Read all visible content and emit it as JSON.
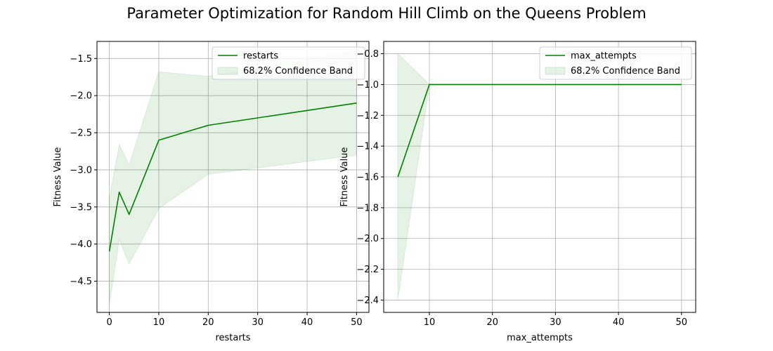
{
  "figure": {
    "title": "Parameter Optimization for Random Hill Climb on the Queens Problem"
  },
  "colors": {
    "line": "#008000",
    "band_fill": "#008000",
    "grid": "#b0b0b0",
    "axes": "#000000"
  },
  "chart_data": [
    {
      "type": "line",
      "xlabel": "restarts",
      "ylabel": "Fitness Value",
      "xlim": [
        -2.5,
        52.5
      ],
      "ylim": [
        -4.92,
        -1.27
      ],
      "xticks": [
        0,
        10,
        20,
        30,
        40,
        50
      ],
      "xtick_labels": [
        "0",
        "10",
        "20",
        "30",
        "40",
        "50"
      ],
      "yticks": [
        -4.5,
        -4.0,
        -3.5,
        -3.0,
        -2.5,
        -2.0,
        -1.5
      ],
      "ytick_labels": [
        "−4.5",
        "−4.0",
        "−3.5",
        "−3.0",
        "−2.5",
        "−2.0",
        "−1.5"
      ],
      "grid": true,
      "legend_position": "top-right",
      "series": [
        {
          "name": "restarts",
          "x": [
            0,
            2,
            4,
            10,
            20,
            50
          ],
          "y": [
            -4.1,
            -3.3,
            -3.6,
            -2.6,
            -2.4,
            -2.1
          ],
          "band_lower": [
            -4.82,
            -3.94,
            -4.27,
            -3.52,
            -3.06,
            -2.8
          ],
          "band_upper": [
            -3.38,
            -2.66,
            -2.93,
            -1.68,
            -1.74,
            -1.4
          ]
        }
      ],
      "legend": {
        "line_label": "restarts",
        "band_label": "68.2% Confidence Band"
      }
    },
    {
      "type": "line",
      "xlabel": "max_attempts",
      "ylabel": "Fitness Value",
      "xlim": [
        2.75,
        52.25
      ],
      "ylim": [
        -2.48,
        -0.72
      ],
      "xticks": [
        10,
        20,
        30,
        40,
        50
      ],
      "xtick_labels": [
        "10",
        "20",
        "30",
        "40",
        "50"
      ],
      "yticks": [
        -2.4,
        -2.2,
        -2.0,
        -1.8,
        -1.6,
        -1.4,
        -1.2,
        -1.0,
        -0.8
      ],
      "ytick_labels": [
        "−2.4",
        "−2.2",
        "−2.0",
        "−1.8",
        "−1.6",
        "−1.4",
        "−1.2",
        "−1.0",
        "−0.8"
      ],
      "grid": true,
      "legend_position": "top-right",
      "series": [
        {
          "name": "max_attempts",
          "x": [
            5,
            10,
            20,
            50
          ],
          "y": [
            -1.6,
            -1.0,
            -1.0,
            -1.0
          ],
          "band_lower": [
            -2.4,
            -1.0,
            -1.0,
            -1.0
          ],
          "band_upper": [
            -0.8,
            -1.0,
            -1.0,
            -1.0
          ]
        }
      ],
      "legend": {
        "line_label": "max_attempts",
        "band_label": "68.2% Confidence Band"
      }
    }
  ]
}
